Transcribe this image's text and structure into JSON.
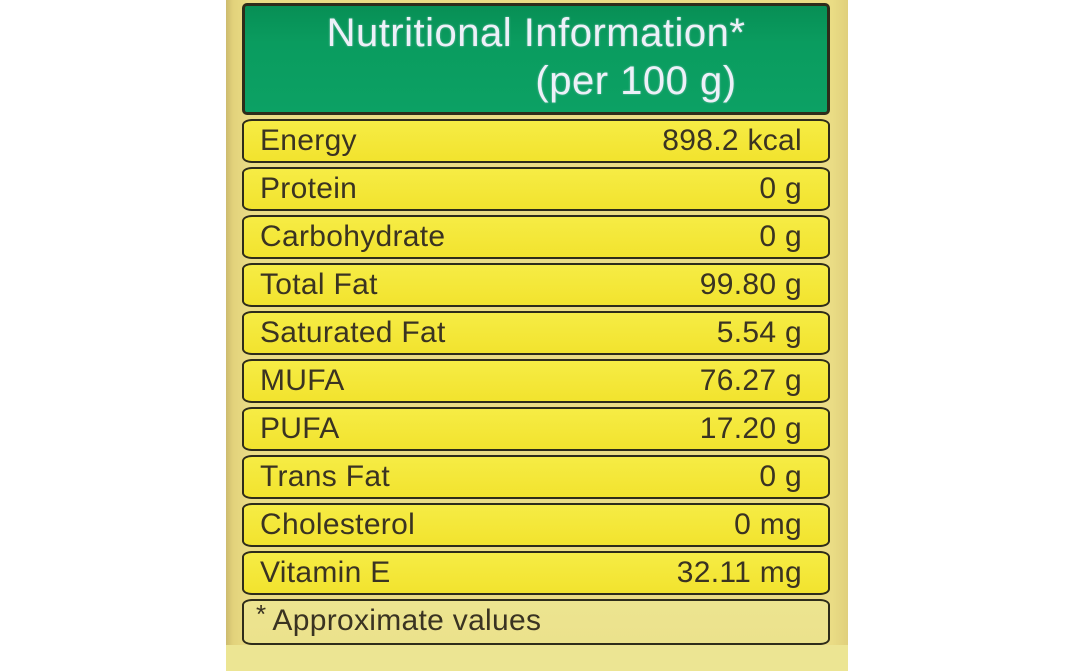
{
  "label": {
    "header": {
      "title": "Nutritional Information*",
      "subtitle": "(per 100 g)"
    },
    "rows": [
      {
        "label": "Energy",
        "value": "898.2 kcal"
      },
      {
        "label": "Protein",
        "value": "0 g"
      },
      {
        "label": "Carbohydrate",
        "value": "0 g"
      },
      {
        "label": "Total Fat",
        "value": "99.80 g"
      },
      {
        "label": "Saturated Fat",
        "value": "5.54 g"
      },
      {
        "label": "MUFA",
        "value": "76.27 g"
      },
      {
        "label": "PUFA",
        "value": "17.20 g"
      },
      {
        "label": "Trans Fat",
        "value": "0 g"
      },
      {
        "label": "Cholesterol",
        "value": "0 mg"
      },
      {
        "label": "Vitamin E",
        "value": "32.11 mg"
      }
    ],
    "footnote_mark": "*",
    "footnote_text": "Approximate values"
  },
  "colors": {
    "green": "#0a9c5f",
    "row-yellow": "#f2e32e",
    "package": "#eadc85",
    "line": "#2e2c1a",
    "ink": "#3a3322",
    "header-text": "#edf0f8"
  }
}
